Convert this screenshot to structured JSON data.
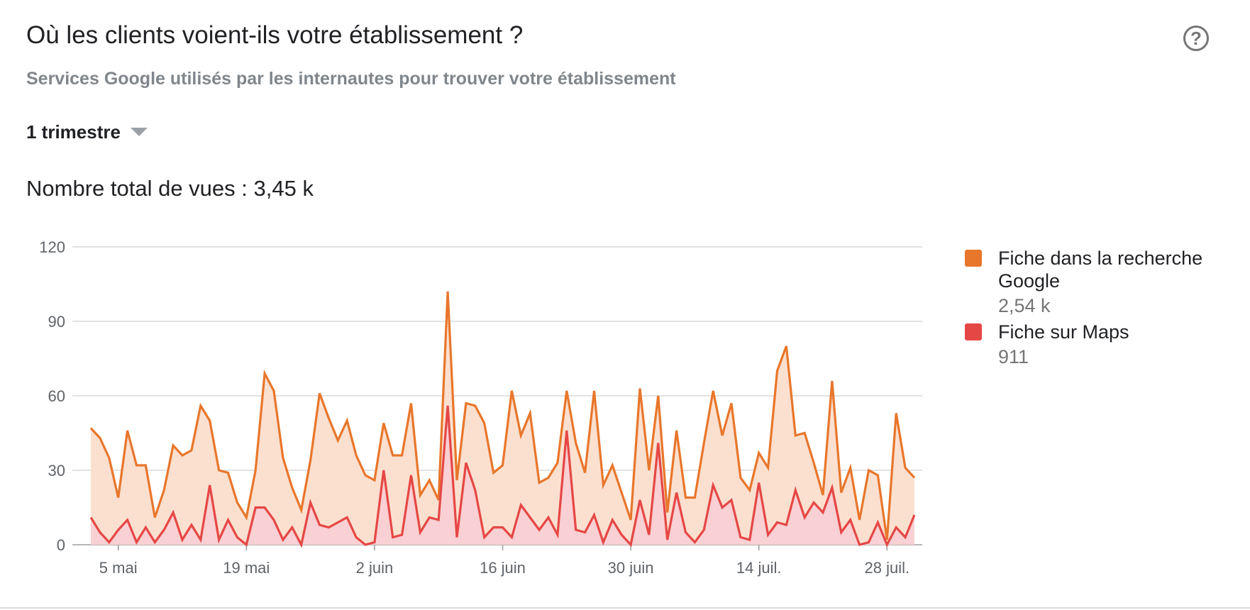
{
  "header": {
    "title": "Où les clients voient-ils votre établissement ?",
    "subtitle": "Services Google utilisés par les internautes pour trouver votre établissement",
    "help_icon": "help-circle-icon",
    "help_glyph": "?"
  },
  "period": {
    "selected": "1 trimestre"
  },
  "total": {
    "label": "Nombre total de vues : 3,45 k"
  },
  "legend": [
    {
      "name": "Fiche dans la recherche Google",
      "value": "2,54 k",
      "color": "#e8762b"
    },
    {
      "name": "Fiche sur Maps",
      "value": "911",
      "color": "#e54745"
    }
  ],
  "chart_data": {
    "type": "area",
    "title": "",
    "xlabel": "",
    "ylabel": "",
    "ylim": [
      0,
      120
    ],
    "y_ticks": [
      0,
      30,
      60,
      90,
      120
    ],
    "x_start": "2 mai",
    "x_tick_labels": [
      "5 mai",
      "19 mai",
      "2 juin",
      "16 juin",
      "30 juin",
      "14 juil.",
      "28 juil."
    ],
    "x_tick_day_index": [
      3,
      17,
      31,
      45,
      59,
      73,
      87
    ],
    "grid": true,
    "legend_position": "right",
    "series": [
      {
        "name": "Fiche dans la recherche Google",
        "color": "#e8762b",
        "fill": "#fbe0d0",
        "values": [
          47,
          43,
          35,
          19,
          46,
          32,
          32,
          11,
          22,
          40,
          36,
          38,
          56,
          50,
          30,
          29,
          17,
          11,
          30,
          69,
          62,
          35,
          23,
          14,
          34,
          61,
          51,
          42,
          50,
          36,
          28,
          26,
          49,
          36,
          36,
          57,
          20,
          26,
          18,
          102,
          26,
          57,
          56,
          49,
          29,
          32,
          62,
          44,
          53,
          25,
          27,
          33,
          62,
          41,
          29,
          62,
          24,
          32,
          21,
          10,
          63,
          30,
          60,
          13,
          46,
          19,
          19,
          41,
          62,
          44,
          57,
          27,
          22,
          37,
          31,
          70,
          80,
          44,
          45,
          33,
          20,
          66,
          21,
          31,
          10,
          30,
          28,
          2,
          53,
          31,
          27
        ]
      },
      {
        "name": "Fiche sur Maps",
        "color": "#e54745",
        "fill": "#f9d0d3",
        "values": [
          11,
          5,
          1,
          6,
          10,
          1,
          7,
          1,
          6,
          13,
          2,
          8,
          2,
          24,
          2,
          10,
          3,
          0,
          15,
          15,
          10,
          2,
          7,
          0,
          17,
          8,
          7,
          9,
          11,
          3,
          0,
          1,
          30,
          3,
          4,
          28,
          5,
          11,
          10,
          56,
          3,
          33,
          22,
          3,
          7,
          7,
          3,
          16,
          11,
          6,
          11,
          4,
          46,
          6,
          5,
          12,
          1,
          10,
          4,
          0,
          18,
          4,
          41,
          2,
          21,
          5,
          1,
          6,
          24,
          15,
          18,
          3,
          2,
          25,
          4,
          9,
          8,
          22,
          11,
          17,
          13,
          23,
          5,
          10,
          0,
          1,
          9,
          0,
          7,
          3,
          12
        ]
      }
    ]
  }
}
